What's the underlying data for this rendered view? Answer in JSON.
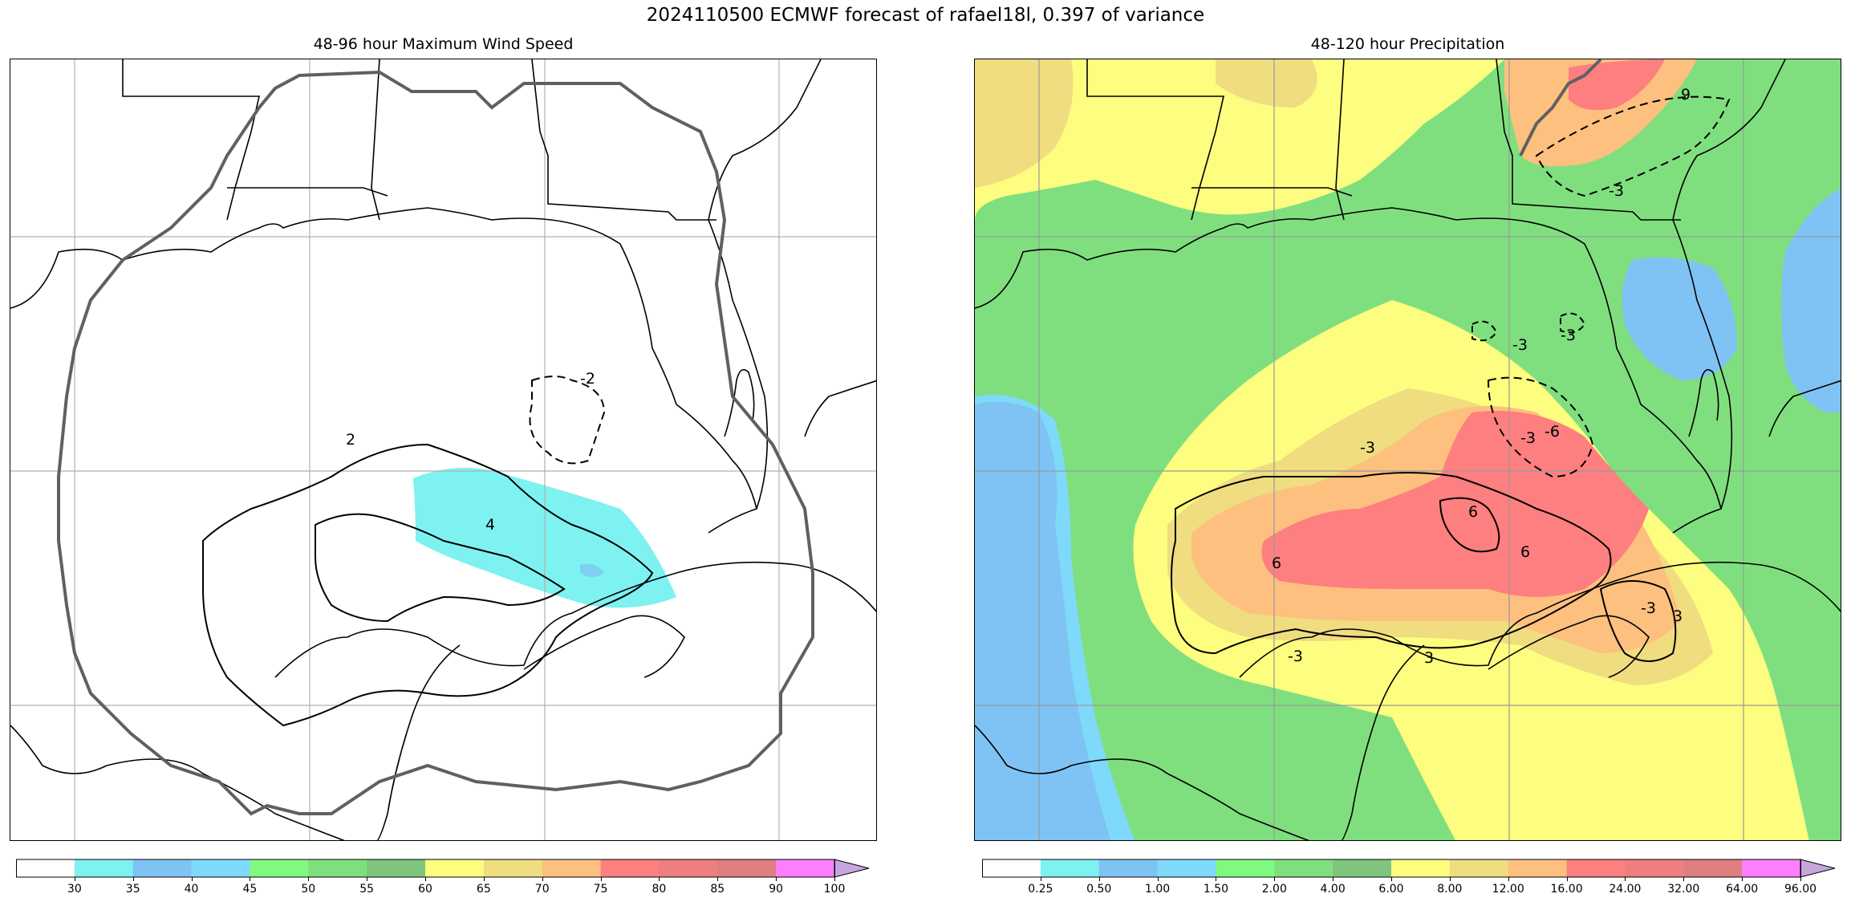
{
  "suptitle": "2024110500 ECMWF forecast of rafael18l, 0.397 of variance",
  "left_panel": {
    "title": "48-96 hour Maximum Wind Speed",
    "contour_labels": [
      "2",
      "4",
      "-2"
    ],
    "colorbar": {
      "ticks": [
        "30",
        "35",
        "40",
        "45",
        "50",
        "55",
        "60",
        "65",
        "70",
        "75",
        "80",
        "85",
        "90",
        "100"
      ],
      "colors": [
        "#ffffff",
        "#7ef1f1",
        "#7fc3f5",
        "#7fd9fb",
        "#7ff97f",
        "#7fdf7f",
        "#7fc57f",
        "#fdfd7f",
        "#efdd80",
        "#fdc07f",
        "#fd7f7f",
        "#ed7f7f",
        "#dd7f7f",
        "#fd7ffd",
        "#c7a6de"
      ]
    },
    "wind_fill_color": "#7ef1f1"
  },
  "right_panel": {
    "title": "48-120 hour Precipitation",
    "contour_labels": [
      "-3",
      "-3",
      "-3",
      "-6",
      "-3",
      "6",
      "6",
      "6",
      "-3",
      "3",
      "3",
      "-3",
      "9",
      "-3"
    ],
    "colorbar": {
      "ticks": [
        "0.25",
        "0.50",
        "1.00",
        "1.50",
        "2.00",
        "4.00",
        "6.00",
        "8.00",
        "12.00",
        "16.00",
        "24.00",
        "32.00",
        "64.00",
        "96.00"
      ],
      "colors": [
        "#ffffff",
        "#7ef1f1",
        "#7fc3f5",
        "#7fd9fb",
        "#7ff97f",
        "#7fdf7f",
        "#7fc57f",
        "#fdfd7f",
        "#efdd80",
        "#fdc07f",
        "#fd7f7f",
        "#ed7f7f",
        "#dd7f7f",
        "#fd7ffd",
        "#c7a6de"
      ]
    }
  }
}
